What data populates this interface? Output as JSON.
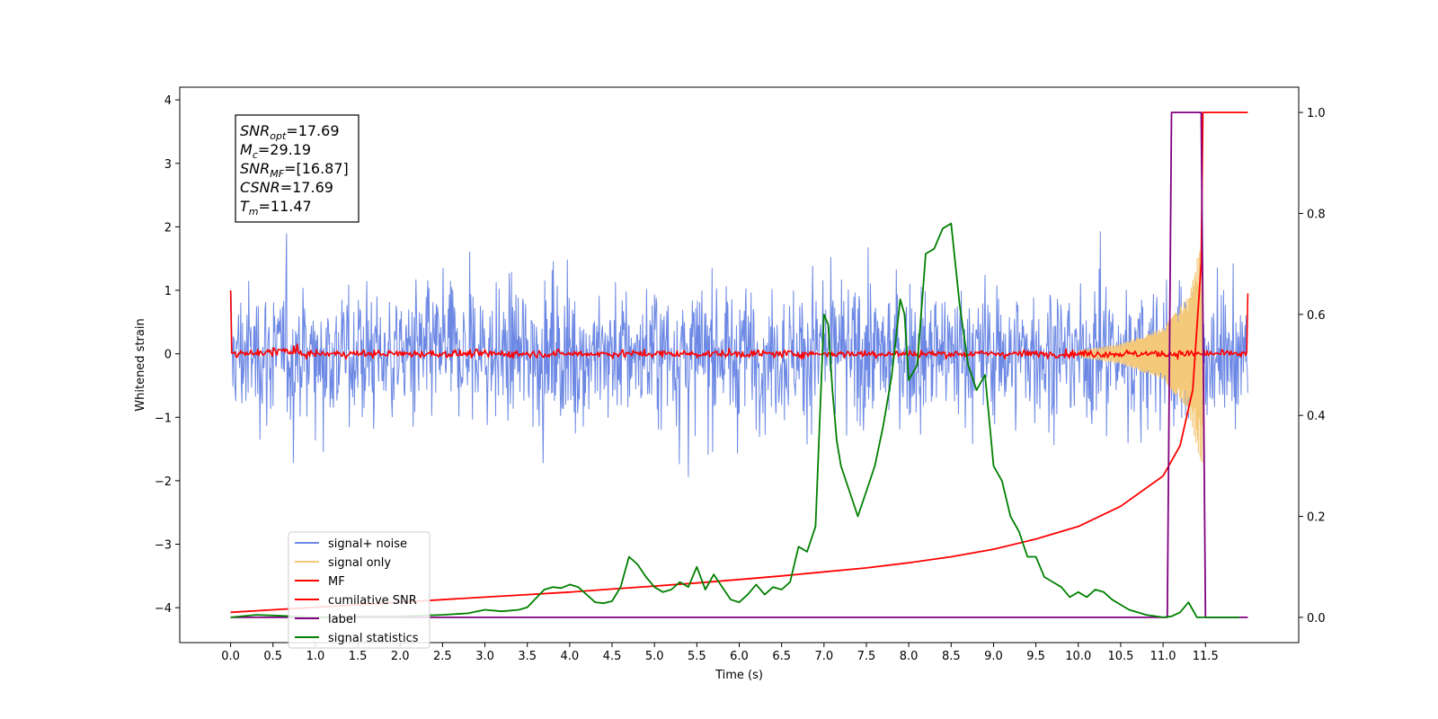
{
  "chart_data": {
    "type": "line",
    "xlabel": "Time (s)",
    "ylabel": "Whitened strain",
    "xlim": [
      -0.6,
      12.6
    ],
    "ylim": [
      -4.55,
      4.2
    ],
    "y2lim": [
      -0.05,
      1.05
    ],
    "x_ticks": [
      "0.0",
      "0.5",
      "1.0",
      "1.5",
      "2.0",
      "2.5",
      "3.0",
      "3.5",
      "4.0",
      "4.5",
      "5.0",
      "5.5",
      "6.0",
      "6.5",
      "7.0",
      "7.5",
      "8.0",
      "8.5",
      "9.0",
      "9.5",
      "10.0",
      "10.5",
      "11.0",
      "11.5"
    ],
    "y_ticks": [
      "4",
      "3",
      "2",
      "1",
      "0",
      "−1",
      "−2",
      "−3",
      "−4"
    ],
    "y2_ticks": [
      "1.0",
      "0.8",
      "0.6",
      "0.4",
      "0.2",
      "0.0"
    ],
    "legend_position": "lower-left",
    "info_box": {
      "snr_opt": {
        "sym": "SNR",
        "sub": "opt",
        "val": "=17.69"
      },
      "mc": {
        "sym": "M",
        "sub": "c",
        "val": "=29.19"
      },
      "snr_mf": {
        "sym": "SNR",
        "sub": "MF",
        "val": "=[16.87]"
      },
      "csnr": {
        "sym": "CSNR",
        "val": "=17.69"
      },
      "tm": {
        "sym": "T",
        "sub": "m",
        "val": "=11.47"
      }
    },
    "series": [
      {
        "name": "signal+ noise",
        "axis": "left",
        "color": "#6c88e4",
        "description_range": [
          -2.6,
          2.6
        ],
        "x_range": [
          0.0,
          12.0
        ]
      },
      {
        "name": "signal only",
        "axis": "left",
        "color": "#f5c97a",
        "chirp_envelope": {
          "x": [
            10.0,
            10.5,
            11.0,
            11.3,
            11.47
          ],
          "amp": [
            0.05,
            0.15,
            0.4,
            0.9,
            1.9
          ]
        }
      },
      {
        "name": "MF",
        "axis": "left",
        "color": "#ff0000",
        "noise_amp": 0.05,
        "x_range": [
          0.0,
          12.0
        ],
        "start_value": 1.0,
        "end_value": 0.95
      },
      {
        "name": "cumilative SNR",
        "axis": "right",
        "color": "#ff0000",
        "x": [
          0.0,
          0.5,
          1.0,
          1.5,
          2.0,
          2.5,
          3.0,
          3.5,
          4.0,
          4.5,
          5.0,
          5.5,
          6.0,
          6.5,
          7.0,
          7.5,
          8.0,
          8.5,
          9.0,
          9.5,
          10.0,
          10.5,
          11.0,
          11.2,
          11.35,
          11.45,
          11.47,
          12.0
        ],
        "values": [
          0.01,
          0.015,
          0.02,
          0.025,
          0.03,
          0.035,
          0.04,
          0.045,
          0.05,
          0.056,
          0.062,
          0.068,
          0.075,
          0.082,
          0.09,
          0.098,
          0.108,
          0.12,
          0.135,
          0.155,
          0.18,
          0.22,
          0.28,
          0.34,
          0.45,
          0.7,
          1.0,
          1.0
        ]
      },
      {
        "name": "label",
        "axis": "right",
        "color": "#800080",
        "x": [
          0.0,
          11.05,
          11.1,
          11.45,
          11.5,
          12.0
        ],
        "values": [
          0.0,
          0.0,
          1.0,
          1.0,
          0.0,
          0.0
        ]
      },
      {
        "name": "signal statistics",
        "axis": "right",
        "color": "#008000",
        "x": [
          0.0,
          0.3,
          0.6,
          1.0,
          1.5,
          2.0,
          2.5,
          2.8,
          3.0,
          3.2,
          3.4,
          3.5,
          3.7,
          3.8,
          3.9,
          4.0,
          4.1,
          4.2,
          4.3,
          4.4,
          4.5,
          4.6,
          4.7,
          4.8,
          4.9,
          5.0,
          5.1,
          5.2,
          5.3,
          5.4,
          5.5,
          5.6,
          5.7,
          5.8,
          5.9,
          6.0,
          6.1,
          6.2,
          6.3,
          6.4,
          6.5,
          6.6,
          6.7,
          6.8,
          6.9,
          7.0,
          7.05,
          7.1,
          7.15,
          7.2,
          7.3,
          7.4,
          7.5,
          7.6,
          7.7,
          7.8,
          7.9,
          7.95,
          8.0,
          8.1,
          8.2,
          8.3,
          8.4,
          8.5,
          8.6,
          8.7,
          8.8,
          8.9,
          9.0,
          9.1,
          9.2,
          9.3,
          9.4,
          9.5,
          9.6,
          9.7,
          9.8,
          9.9,
          10.0,
          10.1,
          10.2,
          10.3,
          10.4,
          10.5,
          10.6,
          10.7,
          10.8,
          11.0,
          11.1,
          11.2,
          11.3,
          11.35,
          11.4,
          11.5,
          11.9
        ],
        "values": [
          0.0,
          0.005,
          0.003,
          0.0,
          0.002,
          0.002,
          0.005,
          0.008,
          0.015,
          0.012,
          0.015,
          0.02,
          0.055,
          0.06,
          0.058,
          0.065,
          0.06,
          0.045,
          0.03,
          0.028,
          0.032,
          0.06,
          0.12,
          0.105,
          0.08,
          0.06,
          0.05,
          0.055,
          0.07,
          0.06,
          0.1,
          0.055,
          0.085,
          0.06,
          0.035,
          0.03,
          0.045,
          0.065,
          0.045,
          0.06,
          0.055,
          0.07,
          0.14,
          0.13,
          0.18,
          0.6,
          0.58,
          0.45,
          0.35,
          0.3,
          0.25,
          0.2,
          0.25,
          0.3,
          0.38,
          0.48,
          0.63,
          0.6,
          0.47,
          0.5,
          0.72,
          0.73,
          0.77,
          0.78,
          0.62,
          0.5,
          0.45,
          0.48,
          0.3,
          0.27,
          0.2,
          0.17,
          0.12,
          0.12,
          0.08,
          0.07,
          0.06,
          0.04,
          0.05,
          0.04,
          0.055,
          0.05,
          0.035,
          0.025,
          0.015,
          0.01,
          0.005,
          0.0,
          0.002,
          0.01,
          0.03,
          0.015,
          0.0,
          0.0,
          0.0
        ]
      }
    ]
  }
}
